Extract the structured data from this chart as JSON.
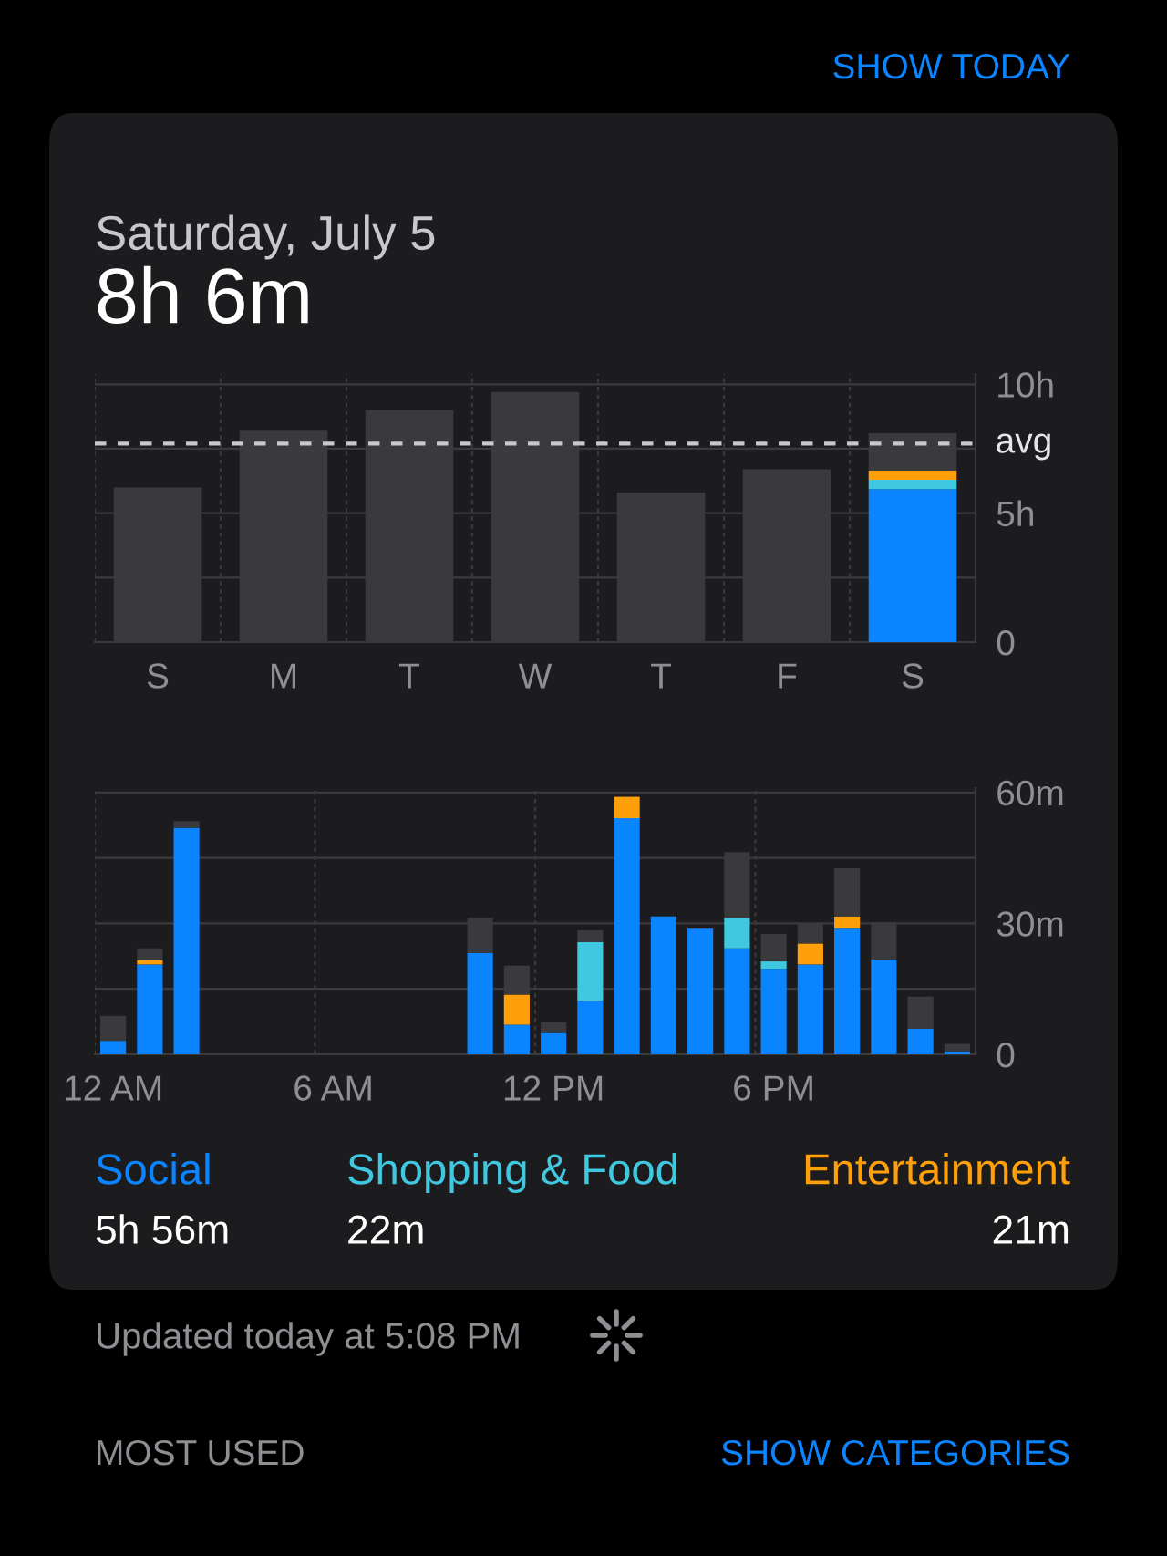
{
  "chart_data": [
    {
      "type": "bar",
      "title": "Saturday, July 5",
      "subtitle": "8h 6m",
      "stacked": true,
      "categories": [
        "S",
        "M",
        "T",
        "W",
        "T",
        "F",
        "S"
      ],
      "series": [
        {
          "color": "#0a84ff",
          "values": [
            null,
            null,
            null,
            null,
            null,
            null,
            5.93
          ]
        },
        {
          "color": "#40c8e0",
          "values": [
            null,
            null,
            null,
            null,
            null,
            null,
            0.37
          ]
        },
        {
          "color": "#ff9f0a",
          "values": [
            null,
            null,
            null,
            null,
            null,
            null,
            0.35
          ]
        },
        {
          "color": "#3a3a3c",
          "values": [
            6.0,
            8.2,
            9.0,
            9.7,
            5.8,
            6.7,
            1.45
          ]
        }
      ],
      "ylim": [
        0,
        10.4
      ],
      "yticks": [
        {
          "value": 0,
          "label": "0"
        },
        {
          "value": 2.5,
          "label": null
        },
        {
          "value": 5,
          "label": "5h"
        },
        {
          "value": 7.5,
          "label": null
        },
        {
          "value": 10,
          "label": "10h"
        }
      ],
      "ref_lines": [
        {
          "axis": "y",
          "value": 7.7,
          "label": "avg",
          "color": "#c7c7cc",
          "line_style": "dashed"
        }
      ],
      "grid": true,
      "annotations": [
        "SHOW TODAY"
      ]
    },
    {
      "type": "bar",
      "stacked": true,
      "categories": [
        "12 AM",
        null,
        null,
        null,
        null,
        null,
        "6 AM",
        null,
        null,
        null,
        null,
        null,
        "12 PM",
        null,
        null,
        null,
        null,
        null,
        "6 PM",
        null,
        null,
        null,
        null,
        null
      ],
      "series": [
        {
          "name": "Social",
          "color": "#0a84ff",
          "values": [
            3.1,
            20.6,
            51.9,
            null,
            null,
            null,
            null,
            null,
            null,
            null,
            23.2,
            6.8,
            4.9,
            12.2,
            54.1,
            31.6,
            28.8,
            24.3,
            19.6,
            20.6,
            28.8,
            21.8,
            5.9,
            0.7
          ]
        },
        {
          "name": "Shopping & Food",
          "color": "#40c8e0",
          "values": [
            null,
            null,
            null,
            null,
            null,
            null,
            null,
            null,
            null,
            null,
            null,
            null,
            null,
            13.5,
            null,
            null,
            null,
            7.0,
            1.7,
            null,
            null,
            null,
            null,
            null
          ]
        },
        {
          "name": "Entertainment",
          "color": "#ff9f0a",
          "values": [
            null,
            1.0,
            null,
            null,
            null,
            null,
            null,
            null,
            null,
            null,
            null,
            6.9,
            null,
            null,
            4.9,
            null,
            null,
            null,
            null,
            4.8,
            2.8,
            null,
            null,
            null
          ]
        },
        {
          "color": "#3a3a3c",
          "values": [
            5.7,
            2.7,
            1.5,
            null,
            null,
            null,
            null,
            null,
            null,
            null,
            8.1,
            6.6,
            2.5,
            2.7,
            null,
            null,
            null,
            15.0,
            6.3,
            4.5,
            11.0,
            8.5,
            7.3,
            1.7
          ]
        }
      ],
      "ylim": [
        0,
        61
      ],
      "yticks": [
        {
          "value": 0,
          "label": "0"
        },
        {
          "value": 15,
          "label": null
        },
        {
          "value": 30,
          "label": "30m"
        },
        {
          "value": 45,
          "label": null
        },
        {
          "value": 60,
          "label": "60m"
        }
      ],
      "grid": true,
      "legend": "bottom",
      "annotations": [
        "5h 56m",
        "22m",
        "21m",
        "Updated today at 5:08 PM",
        "MOST USED",
        "SHOW CATEGORIES"
      ]
    }
  ]
}
